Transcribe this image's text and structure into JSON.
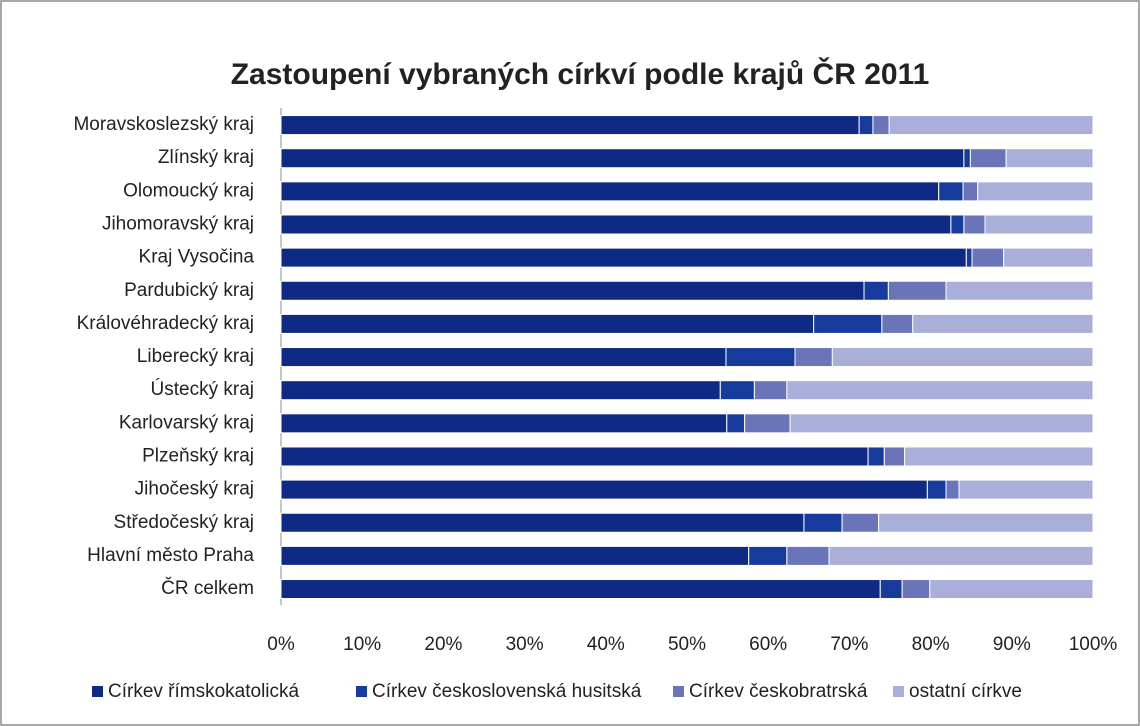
{
  "chart_data": {
    "type": "stacked-barh",
    "title": "Zastoupení vybraných církví podle krajů ČR 2011",
    "categories": [
      "Moravskoslezský kraj",
      "Zlínský kraj",
      "Olomoucký kraj",
      "Jihomoravský kraj",
      "Kraj Vysočina",
      "Pardubický kraj",
      "Královéhradecký kraj",
      "Liberecký kraj",
      "Ústecký kraj",
      "Karlovarský kraj",
      "Plzeňský kraj",
      "Jihočeský kraj",
      "Středočeský kraj",
      "Hlavní město Praha",
      "ČR celkem"
    ],
    "series": [
      {
        "name": "Církev římskokatolická",
        "color": "#0f2a84",
        "values": [
          71.2,
          84.1,
          81.0,
          82.5,
          84.4,
          71.8,
          65.6,
          54.8,
          54.1,
          54.9,
          72.3,
          79.6,
          64.4,
          57.6,
          73.8
        ]
      },
      {
        "name": "Církev československá husitská",
        "color": "#163b9c",
        "values": [
          1.7,
          0.8,
          3.0,
          1.6,
          0.7,
          3.0,
          8.4,
          8.5,
          4.2,
          2.2,
          2.0,
          2.3,
          4.7,
          4.7,
          2.7
        ]
      },
      {
        "name": "Církev českobratrská",
        "color": "#6a74b8",
        "values": [
          2.0,
          4.4,
          1.8,
          2.6,
          3.9,
          7.1,
          3.8,
          4.6,
          4.0,
          5.6,
          2.5,
          1.6,
          4.5,
          5.2,
          3.4
        ]
      },
      {
        "name": "ostatní církve",
        "color": "#a9afd8",
        "values": [
          25.1,
          10.7,
          14.2,
          13.3,
          11.0,
          18.1,
          22.2,
          32.1,
          37.7,
          37.3,
          23.2,
          16.5,
          26.4,
          32.5,
          20.1
        ]
      }
    ],
    "xlim": [
      0,
      100
    ],
    "xticks": [
      {
        "value": 0,
        "label": "0%"
      },
      {
        "value": 10,
        "label": "10%"
      },
      {
        "value": 20,
        "label": "20%"
      },
      {
        "value": 30,
        "label": "30%"
      },
      {
        "value": 40,
        "label": "40%"
      },
      {
        "value": 50,
        "label": "50%"
      },
      {
        "value": 60,
        "label": "60%"
      },
      {
        "value": 70,
        "label": "70%"
      },
      {
        "value": 80,
        "label": "80%"
      },
      {
        "value": 90,
        "label": "90%"
      },
      {
        "value": 100,
        "label": "100%"
      }
    ],
    "legend": "bottom"
  }
}
